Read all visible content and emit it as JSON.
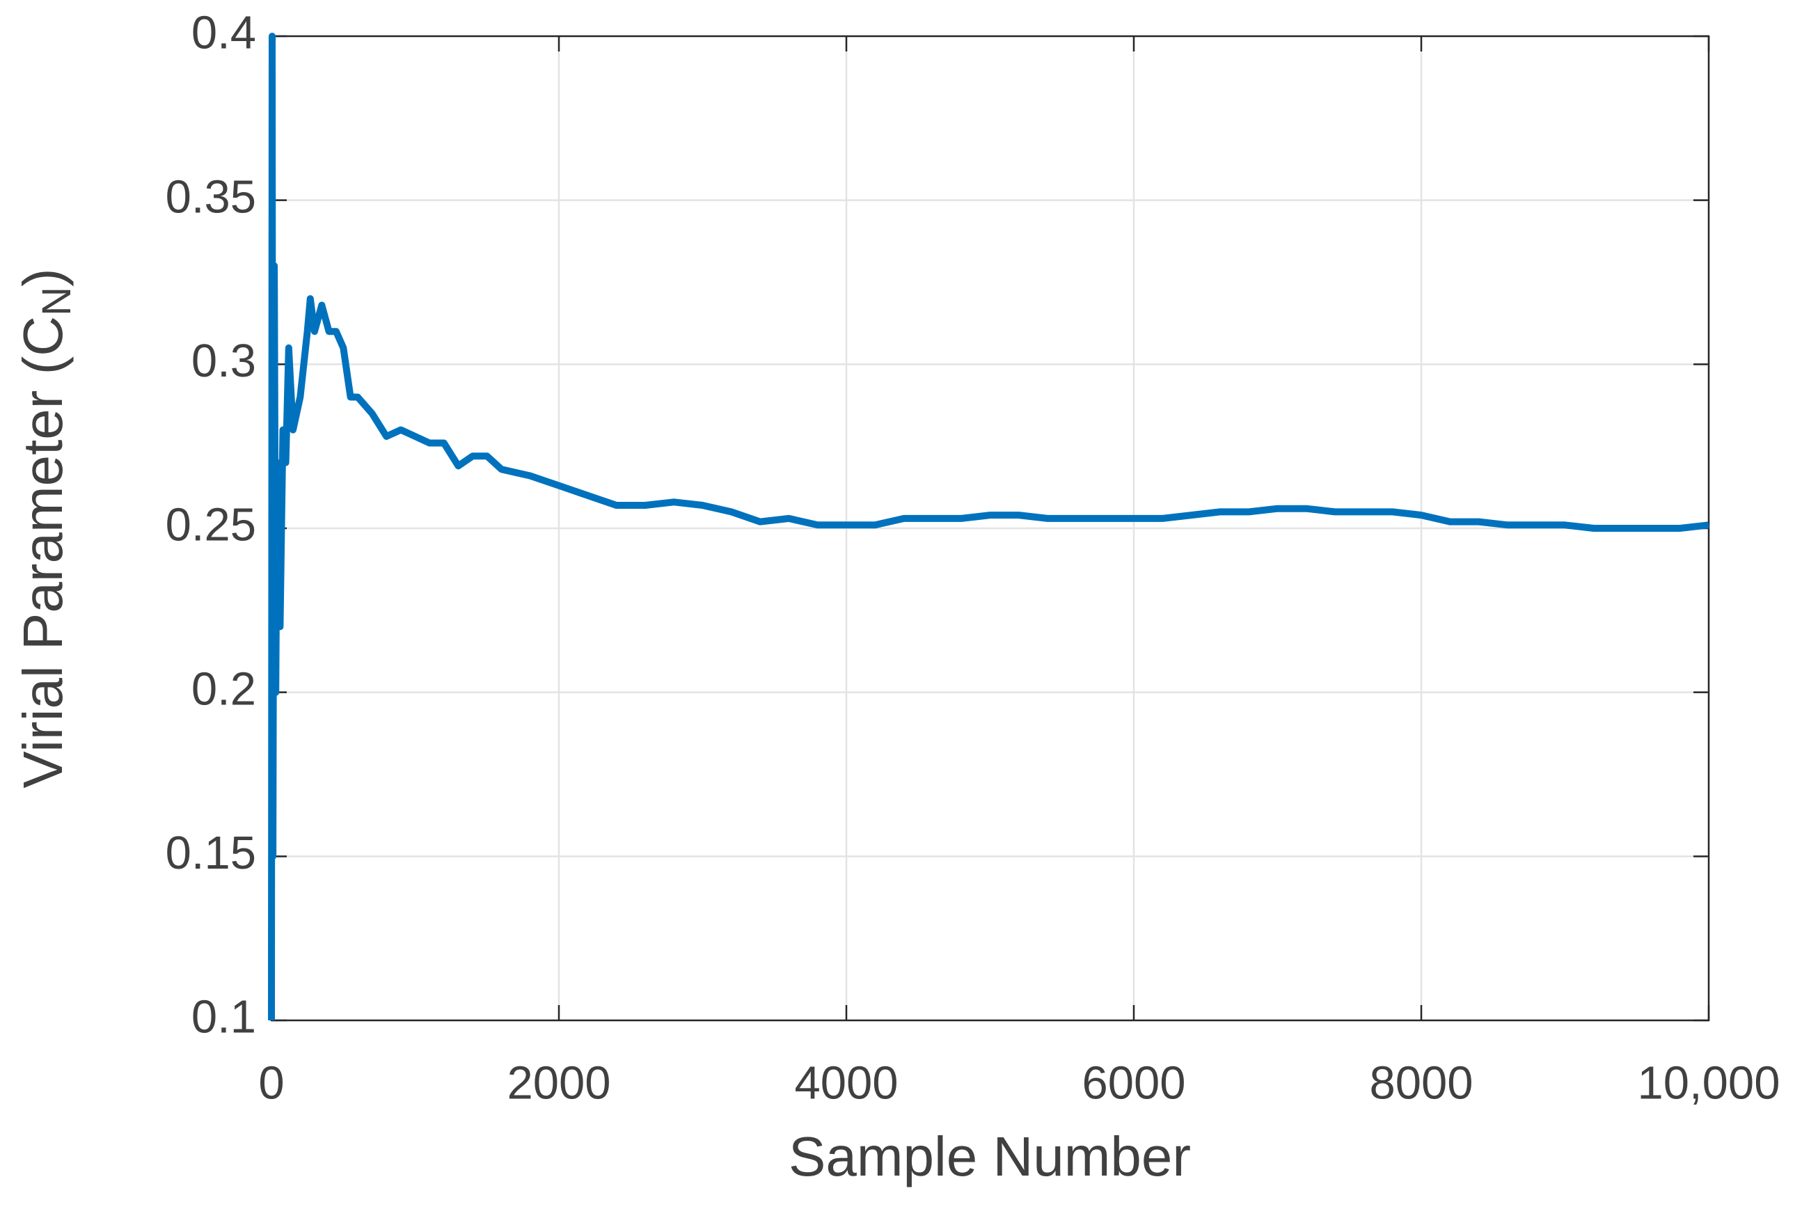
{
  "chart_data": {
    "type": "line",
    "xlabel": "Sample Number",
    "ylabel_parts": [
      "Virial Parameter (C",
      "N",
      ")"
    ],
    "xlim": [
      0,
      10000
    ],
    "xticks": [
      0,
      2000,
      4000,
      6000,
      8000,
      {
        "value": 10000,
        "label": "10,000"
      }
    ],
    "ylim": [
      0.1,
      0.4
    ],
    "yticks": [
      0.1,
      0.15,
      0.2,
      0.25,
      0.3,
      0.35,
      0.4
    ],
    "grid": true,
    "x": [
      0,
      5,
      10,
      20,
      30,
      40,
      60,
      80,
      100,
      120,
      150,
      200,
      250,
      270,
      300,
      350,
      400,
      450,
      500,
      550,
      600,
      700,
      800,
      900,
      1000,
      1100,
      1200,
      1300,
      1400,
      1500,
      1600,
      1800,
      2000,
      2200,
      2400,
      2600,
      2800,
      3000,
      3200,
      3400,
      3600,
      3800,
      4000,
      4200,
      4400,
      4600,
      4800,
      5000,
      5200,
      5400,
      5600,
      5800,
      6000,
      6200,
      6400,
      6600,
      6800,
      7000,
      7200,
      7400,
      7600,
      7800,
      8000,
      8200,
      8400,
      8600,
      8800,
      9000,
      9200,
      9400,
      9600,
      9800,
      10000
    ],
    "series": [
      {
        "color": "#0072bd",
        "values": [
          0.1,
          0.4,
          0.15,
          0.33,
          0.2,
          0.27,
          0.22,
          0.28,
          0.27,
          0.305,
          0.28,
          0.29,
          0.31,
          0.32,
          0.31,
          0.318,
          0.31,
          0.31,
          0.305,
          0.29,
          0.29,
          0.285,
          0.278,
          0.28,
          0.278,
          0.276,
          0.276,
          0.269,
          0.272,
          0.272,
          0.268,
          0.266,
          0.263,
          0.26,
          0.257,
          0.257,
          0.258,
          0.257,
          0.255,
          0.252,
          0.253,
          0.251,
          0.251,
          0.251,
          0.253,
          0.253,
          0.253,
          0.254,
          0.254,
          0.253,
          0.253,
          0.253,
          0.253,
          0.253,
          0.254,
          0.255,
          0.255,
          0.256,
          0.256,
          0.255,
          0.255,
          0.255,
          0.254,
          0.252,
          0.252,
          0.251,
          0.251,
          0.251,
          0.25,
          0.25,
          0.25,
          0.25,
          0.251
        ]
      }
    ]
  }
}
